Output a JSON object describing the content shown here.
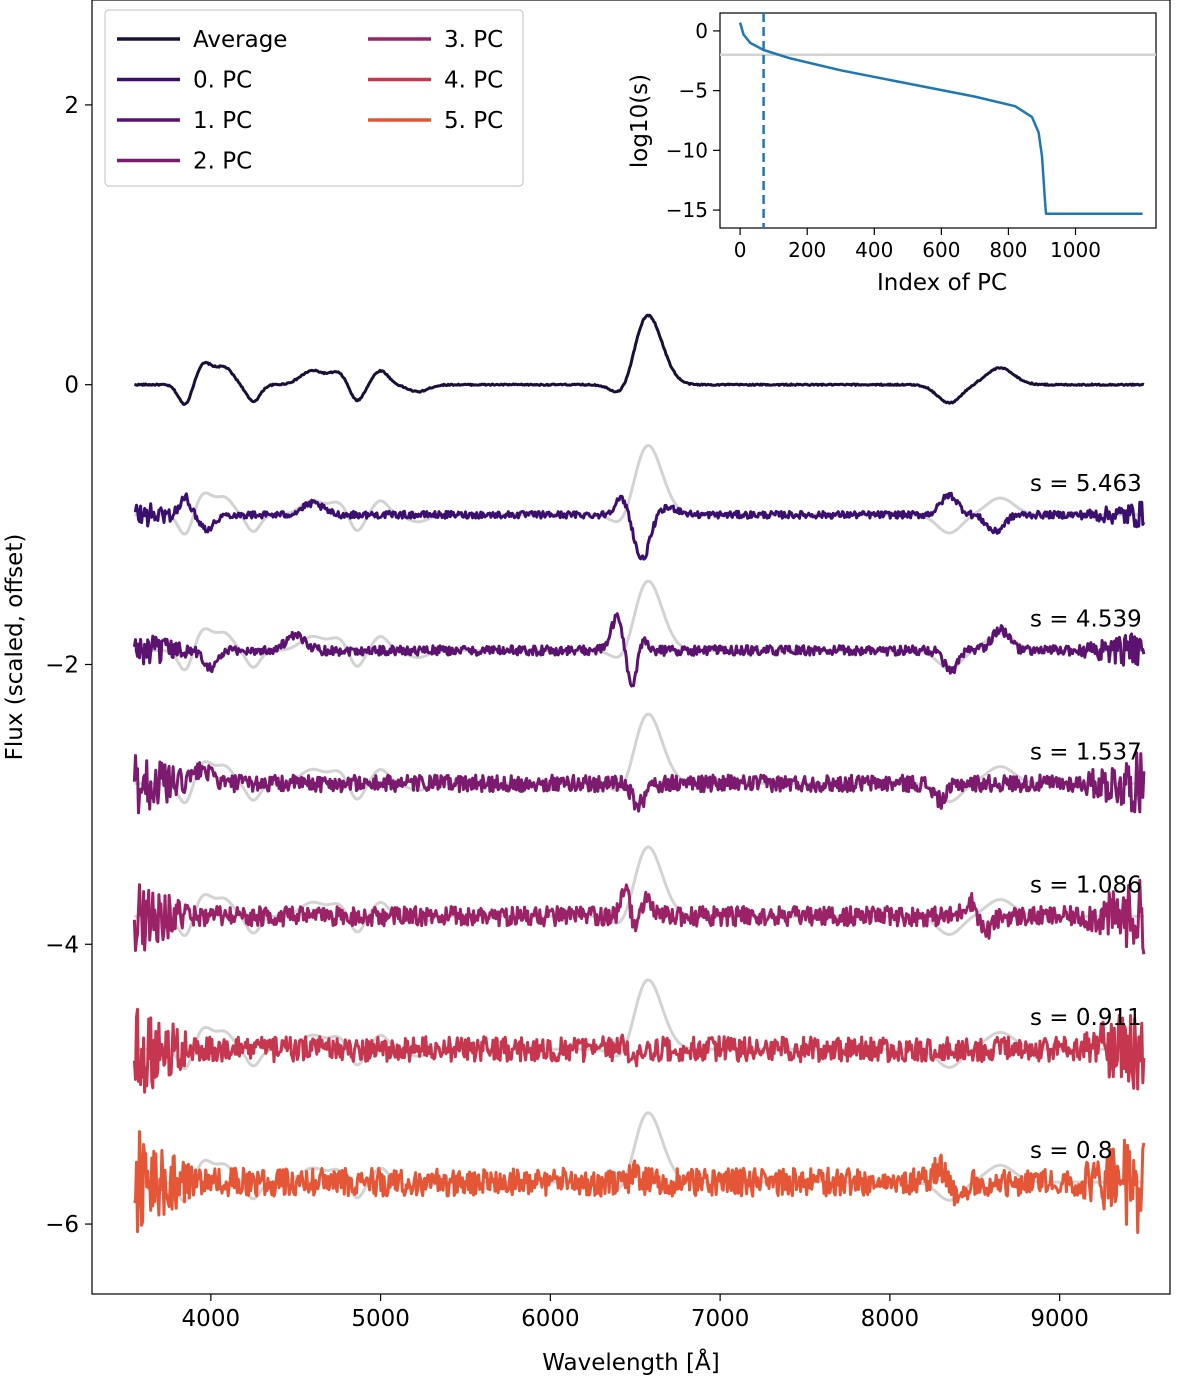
{
  "chart_data": [
    {
      "type": "line",
      "title": "",
      "xlabel": "Wavelength [Å]",
      "ylabel": "Flux (scaled, offset)",
      "xlim": [
        3300,
        9650
      ],
      "ylim": [
        -6.5,
        2.75
      ],
      "xticks": [
        4000,
        5000,
        6000,
        7000,
        8000,
        9000
      ],
      "yticks": [
        2,
        0,
        -2,
        -4,
        -6
      ],
      "ytick_labels": [
        "2",
        "0",
        "−2",
        "−4",
        "−6"
      ],
      "legend": {
        "location": "top-left",
        "columns": 2
      },
      "reference_color": "#d3d3d3",
      "series": [
        {
          "name": "Average",
          "color": "#1b1037",
          "offset": 0,
          "s_label": ""
        },
        {
          "name": "0. PC",
          "color": "#3b0f70",
          "offset": -0.93,
          "s_label": "s = 5.463"
        },
        {
          "name": "1. PC",
          "color": "#5c1270",
          "offset": -1.9,
          "s_label": "s = 4.539"
        },
        {
          "name": "2. PC",
          "color": "#7b1a6e",
          "offset": -2.85,
          "s_label": "s = 1.537"
        },
        {
          "name": "3. PC",
          "color": "#9c2267",
          "offset": -3.8,
          "s_label": "s = 1.086"
        },
        {
          "name": "4. PC",
          "color": "#c7364f",
          "offset": -4.75,
          "s_label": "s = 0.911"
        },
        {
          "name": "5. PC",
          "color": "#e55637",
          "offset": -5.7,
          "s_label": "s = 0.8"
        }
      ],
      "average_features": [
        {
          "center": 3850,
          "width": 40,
          "amplitude": -0.15
        },
        {
          "center": 3960,
          "width": 50,
          "amplitude": 0.15
        },
        {
          "center": 4080,
          "width": 50,
          "amplitude": 0.12
        },
        {
          "center": 4250,
          "width": 40,
          "amplitude": -0.12
        },
        {
          "center": 4600,
          "width": 70,
          "amplitude": 0.1
        },
        {
          "center": 4750,
          "width": 50,
          "amplitude": 0.08
        },
        {
          "center": 4860,
          "width": 40,
          "amplitude": -0.12
        },
        {
          "center": 5000,
          "width": 45,
          "amplitude": 0.1
        },
        {
          "center": 5220,
          "width": 60,
          "amplitude": -0.05
        },
        {
          "center": 6430,
          "width": 60,
          "amplitude": -0.1
        },
        {
          "center": 6563,
          "width": 75,
          "amplitude": 0.45
        },
        {
          "center": 8350,
          "width": 70,
          "amplitude": -0.13
        },
        {
          "center": 8650,
          "width": 80,
          "amplitude": 0.12
        }
      ]
    },
    {
      "type": "line",
      "title": "",
      "xlabel": "Index of PC",
      "ylabel": "log10(s)",
      "xlim": [
        -60,
        1240
      ],
      "ylim": [
        -16.5,
        1.5
      ],
      "xticks": [
        0,
        200,
        400,
        600,
        800,
        1000
      ],
      "yticks": [
        0,
        -5,
        -10,
        -15
      ],
      "ytick_labels": [
        "0",
        "−5",
        "−10",
        "−15"
      ],
      "line_color": "#1f77b4",
      "hline_y": -2,
      "hline_color": "#d3d3d3",
      "vline_x": 70,
      "x": [
        0,
        10,
        30,
        70,
        150,
        300,
        500,
        700,
        820,
        870,
        890,
        900,
        906,
        910,
        912,
        915,
        1200
      ],
      "y": [
        0.7,
        -0.3,
        -1.0,
        -1.6,
        -2.3,
        -3.3,
        -4.4,
        -5.5,
        -6.3,
        -7.2,
        -8.5,
        -10.5,
        -13.0,
        -14.6,
        -15.3,
        -15.3,
        -15.3
      ]
    }
  ]
}
